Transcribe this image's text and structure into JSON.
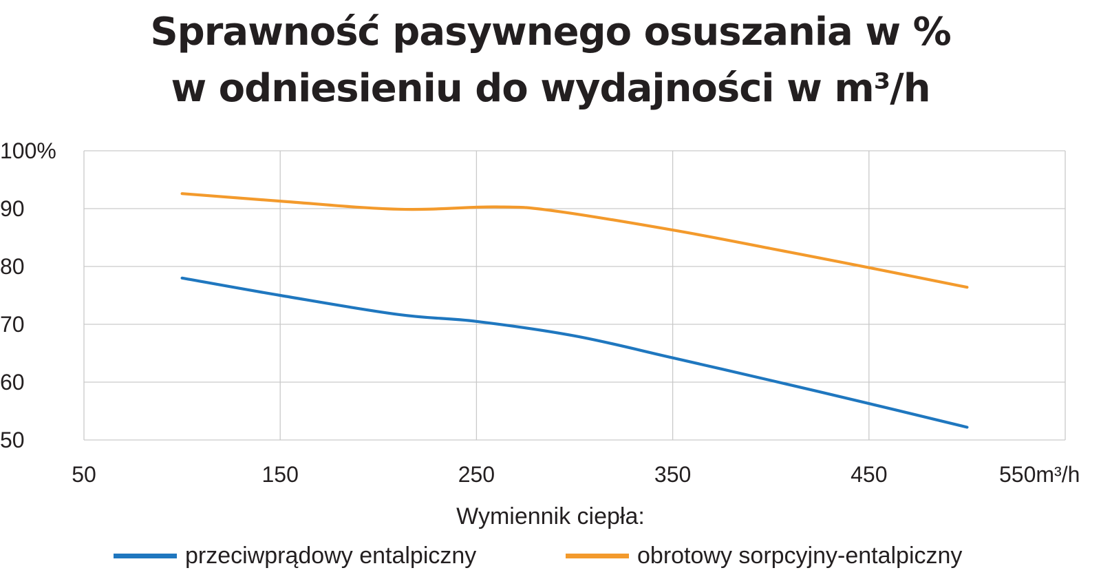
{
  "chart_data": {
    "type": "line",
    "title_lines": [
      "Sprawność pasywnego osuszania w %",
      "w odniesieniu do wydajności w m³/h"
    ],
    "x_ticks": [
      "50",
      "150",
      "250",
      "350",
      "450",
      "550m³/h"
    ],
    "y_ticks": [
      "100%",
      "90",
      "80",
      "70",
      "60",
      "50"
    ],
    "xlim": [
      50,
      550
    ],
    "ylim": [
      50,
      100
    ],
    "grid": true,
    "legend_title": "Wymiennik ciepła:",
    "legend_position": "bottom",
    "series": [
      {
        "name": "przeciwprądowy entalpiczny",
        "color": "#1f77bf",
        "x": [
          100,
          150,
          210,
          250,
          300,
          350,
          400,
          450,
          500
        ],
        "values": [
          78,
          75,
          71.7,
          70.5,
          68,
          64.2,
          60.3,
          56.3,
          52.2
        ]
      },
      {
        "name": "obrotowy sorpcyjny-entalpiczny",
        "color": "#f39a2c",
        "x": [
          100,
          150,
          210,
          260,
          290,
          350,
          400,
          450,
          500
        ],
        "values": [
          92.6,
          91.3,
          89.9,
          90.3,
          89.6,
          86.3,
          83.1,
          79.8,
          76.4
        ]
      }
    ]
  }
}
